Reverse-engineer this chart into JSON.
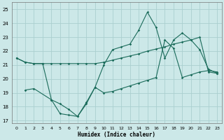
{
  "bg_color": "#cce8e8",
  "grid_color": "#aacfcf",
  "line_color": "#1a6b5a",
  "xlabel": "Humidex (Indice chaleur)",
  "xlim": [
    -0.5,
    23.5
  ],
  "ylim": [
    16.8,
    25.5
  ],
  "yticks": [
    17,
    18,
    19,
    20,
    21,
    22,
    23,
    24,
    25
  ],
  "xticks": [
    0,
    1,
    2,
    3,
    4,
    5,
    6,
    7,
    8,
    9,
    10,
    11,
    12,
    13,
    14,
    15,
    16,
    17,
    18,
    19,
    20,
    21,
    22,
    23
  ],
  "line1_x": [
    0,
    1,
    2,
    3,
    4,
    5,
    6,
    7,
    8,
    9,
    10,
    11,
    12,
    13,
    14,
    15,
    16,
    17,
    18,
    19,
    20,
    21,
    22,
    23
  ],
  "line1_y": [
    21.5,
    21.2,
    21.1,
    21.1,
    21.1,
    21.1,
    21.1,
    21.1,
    21.1,
    21.1,
    21.2,
    21.35,
    21.5,
    21.65,
    21.8,
    22.0,
    22.15,
    22.3,
    22.5,
    22.65,
    22.8,
    23.0,
    20.5,
    20.4
  ],
  "line2_x": [
    0,
    1,
    2,
    3,
    4,
    5,
    6,
    7,
    8,
    9,
    10,
    11,
    12,
    13,
    14,
    15,
    16,
    17,
    18,
    19,
    20,
    21,
    22,
    23
  ],
  "line2_y": [
    21.5,
    21.2,
    21.1,
    21.1,
    18.5,
    17.5,
    17.4,
    17.3,
    18.2,
    19.4,
    21.0,
    22.1,
    22.3,
    22.5,
    23.5,
    24.8,
    23.7,
    21.5,
    22.8,
    23.3,
    22.8,
    22.1,
    20.7,
    20.4
  ],
  "line3_x": [
    1,
    2,
    4,
    5,
    6,
    7,
    8,
    9,
    10,
    11,
    12,
    13,
    14,
    15,
    16,
    17,
    18,
    19,
    20,
    21,
    22,
    23
  ],
  "line3_y": [
    19.2,
    19.3,
    18.5,
    18.2,
    17.8,
    17.3,
    18.3,
    19.4,
    19.0,
    19.1,
    19.3,
    19.5,
    19.7,
    19.9,
    20.1,
    22.8,
    22.2,
    20.1,
    20.3,
    20.5,
    20.6,
    20.5
  ]
}
